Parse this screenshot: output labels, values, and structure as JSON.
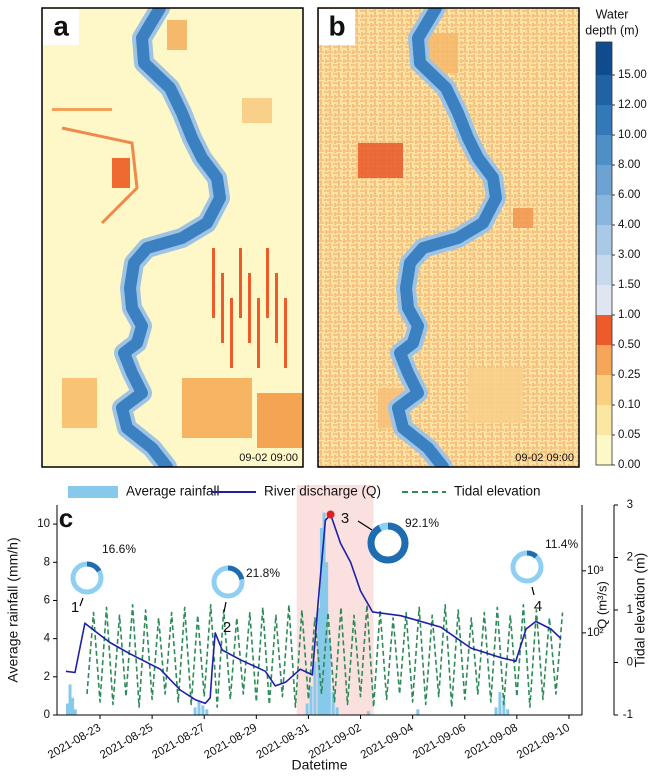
{
  "maps": [
    {
      "label": "a",
      "timestamp": "09-02 09:00"
    },
    {
      "label": "b",
      "timestamp": "09-02 09:00"
    }
  ],
  "colorbar": {
    "title": [
      "Water",
      "depth (m)"
    ],
    "ticks": [
      {
        "value": 0,
        "label": "0.00"
      },
      {
        "value": 0.05,
        "label": "0.05"
      },
      {
        "value": 0.1,
        "label": "0.10"
      },
      {
        "value": 0.25,
        "label": "0.25"
      },
      {
        "value": 0.5,
        "label": "0.50"
      },
      {
        "value": 1,
        "label": "1.00"
      },
      {
        "value": 1.5,
        "label": "1.50"
      },
      {
        "value": 3,
        "label": "3.00"
      },
      {
        "value": 4,
        "label": "4.00"
      },
      {
        "value": 6,
        "label": "6.00"
      },
      {
        "value": 8,
        "label": "8.00"
      },
      {
        "value": 10,
        "label": "10.00"
      },
      {
        "value": 12,
        "label": "12.00"
      },
      {
        "value": 15,
        "label": "15.00"
      }
    ],
    "colors": [
      "#fdf9c6",
      "#fbe7a2",
      "#f8d07f",
      "#f5a658",
      "#ee5b2b",
      "#dfe6f1",
      "#c6d9ed",
      "#a9c9e6",
      "#88b6dd",
      "#6ca3d3",
      "#4e8fc7",
      "#3179b8",
      "#1f63a6",
      "#0e4b8f"
    ]
  },
  "chart_data": {
    "type": "combo",
    "panel_label": "c",
    "x_label": "Datetime",
    "y_label": "Average rainfall (mm/h)",
    "y2_label": "Q (m³/s)",
    "y3_label": "Tidal elevation (m)",
    "xlim": [
      -1.65,
      18.5
    ],
    "xticks": [
      {
        "value": 0,
        "label": "2021-08-23"
      },
      {
        "value": 2,
        "label": "2021-08-25"
      },
      {
        "value": 4,
        "label": "2021-08-27"
      },
      {
        "value": 6,
        "label": "2021-08-29"
      },
      {
        "value": 8,
        "label": "2021-08-31"
      },
      {
        "value": 10,
        "label": "2021-09-02"
      },
      {
        "value": 12,
        "label": "2021-09-04"
      },
      {
        "value": 14,
        "label": "2021-09-06"
      },
      {
        "value": 16,
        "label": "2021-09-08"
      },
      {
        "value": 18,
        "label": "2021-09-10"
      }
    ],
    "ylim": [
      0,
      11
    ],
    "yticks": [
      0,
      2,
      4,
      6,
      8,
      10
    ],
    "y2lim": [
      4.75,
      11500
    ],
    "y2scale": "log",
    "y2ticks": [
      {
        "value": 100,
        "label": "10²"
      },
      {
        "value": 1000,
        "label": "10³"
      }
    ],
    "y3lim": [
      -1,
      3
    ],
    "y3ticks": [
      -1,
      0,
      1,
      2,
      3
    ],
    "highlight_x": [
      7.55,
      10.5
    ],
    "highlight_color": "#fbe0e0",
    "series": [
      {
        "name": "Average rainfall",
        "kind": "bar",
        "axis": "y",
        "color": "#86c9ea",
        "x": [
          -1.25,
          -1.15,
          -1.05,
          -0.95,
          3.65,
          3.8,
          3.95,
          4.1,
          7.95,
          8.1,
          8.25,
          8.4,
          8.5,
          8.6,
          8.7,
          8.8,
          8.95,
          9.1,
          10.3,
          12.2,
          15.2,
          15.35,
          15.5,
          15.65
        ],
        "values": [
          0.6,
          1.6,
          0.9,
          0.3,
          0.4,
          0.7,
          0.5,
          0.3,
          0.6,
          1.5,
          2.8,
          5.6,
          9.8,
          10.6,
          8.0,
          4.0,
          1.2,
          0.4,
          0.2,
          0.3,
          0.4,
          1.2,
          0.8,
          0.3
        ]
      },
      {
        "name": "River discharge (Q)",
        "kind": "line",
        "axis": "y2",
        "color": "#1f20a8",
        "linestyle": "solid",
        "x": [
          -1.31,
          -0.96,
          -0.77,
          -0.58,
          -0.19,
          0.38,
          1.15,
          2.31,
          3.08,
          3.65,
          4.04,
          4.23,
          4.31,
          4.42,
          4.69,
          5.38,
          6.35,
          6.73,
          7.12,
          7.69,
          8.15,
          8.38,
          8.65,
          8.85,
          9.23,
          9.62,
          10.0,
          10.46,
          11.54,
          13.08,
          14.23,
          15.38,
          15.96,
          16.35,
          16.73,
          17.31,
          17.69
        ],
        "values": [
          24,
          23,
          57,
          143,
          107,
          70,
          46,
          26,
          12,
          8.4,
          7.3,
          9.0,
          28,
          100,
          53,
          37,
          24,
          14,
          16,
          26,
          21,
          334,
          6530,
          8080,
          2790,
          1370,
          475,
          218,
          189,
          124,
          57,
          40,
          35,
          115,
          153,
          115,
          81
        ]
      },
      {
        "name": "Tidal elevation",
        "kind": "line",
        "axis": "y3",
        "color": "#2e8b57",
        "linestyle": "dashed",
        "x": [
          -0.5,
          -0.25,
          0,
          0.25,
          0.5,
          0.75,
          1,
          1.25,
          1.5,
          1.75,
          2,
          2.25,
          2.5,
          2.75,
          3,
          3.25,
          3.5,
          3.75,
          4,
          4.25,
          4.5,
          4.75,
          5,
          5.25,
          5.5,
          5.75,
          6,
          6.25,
          6.5,
          6.75,
          7,
          7.25,
          7.5,
          7.75,
          8,
          8.25,
          8.5,
          8.75,
          9,
          9.25,
          9.5,
          9.75,
          10,
          10.25,
          10.5,
          10.75,
          11,
          11.25,
          11.5,
          11.75,
          12,
          12.25,
          12.5,
          12.75,
          13,
          13.25,
          13.5,
          13.75,
          14,
          14.25,
          14.5,
          14.75,
          15,
          15.25,
          15.5,
          15.75,
          16,
          16.25,
          16.5,
          16.75,
          17,
          17.25,
          17.5,
          17.75
        ],
        "values": [
          -0.6,
          0.95,
          -0.75,
          1.05,
          -0.8,
          0.9,
          -0.65,
          1.1,
          -0.85,
          1.0,
          -0.7,
          0.85,
          -0.6,
          0.95,
          -0.75,
          1.05,
          -0.8,
          0.9,
          -0.65,
          1.1,
          -0.85,
          1.0,
          -0.7,
          0.85,
          -0.6,
          0.95,
          -0.75,
          1.05,
          -0.8,
          0.9,
          -0.65,
          1.1,
          -0.85,
          1.0,
          -0.7,
          0.85,
          -0.6,
          0.95,
          -0.75,
          1.05,
          -0.8,
          0.9,
          -0.65,
          1.1,
          -0.85,
          1.0,
          -0.7,
          0.85,
          -0.6,
          0.95,
          -0.75,
          1.05,
          -0.8,
          0.9,
          -0.65,
          1.1,
          -0.85,
          1.0,
          -0.7,
          0.85,
          -0.6,
          0.95,
          -0.75,
          1.05,
          -0.8,
          0.9,
          -0.65,
          1.1,
          -0.85,
          1.0,
          -0.7,
          0.85,
          -0.6,
          0.95
        ]
      }
    ],
    "events": {
      "labels": [
        "1",
        "2",
        "3",
        "4"
      ],
      "label_colors": [
        "#1f20a8",
        "#1f20a8",
        "#e02020",
        "#1f20a8"
      ],
      "values": [
        16.6,
        21.8,
        92.1,
        11.4
      ],
      "value_labels": [
        "16.6%",
        "21.8%",
        "92.1%",
        "11.4%"
      ]
    }
  }
}
